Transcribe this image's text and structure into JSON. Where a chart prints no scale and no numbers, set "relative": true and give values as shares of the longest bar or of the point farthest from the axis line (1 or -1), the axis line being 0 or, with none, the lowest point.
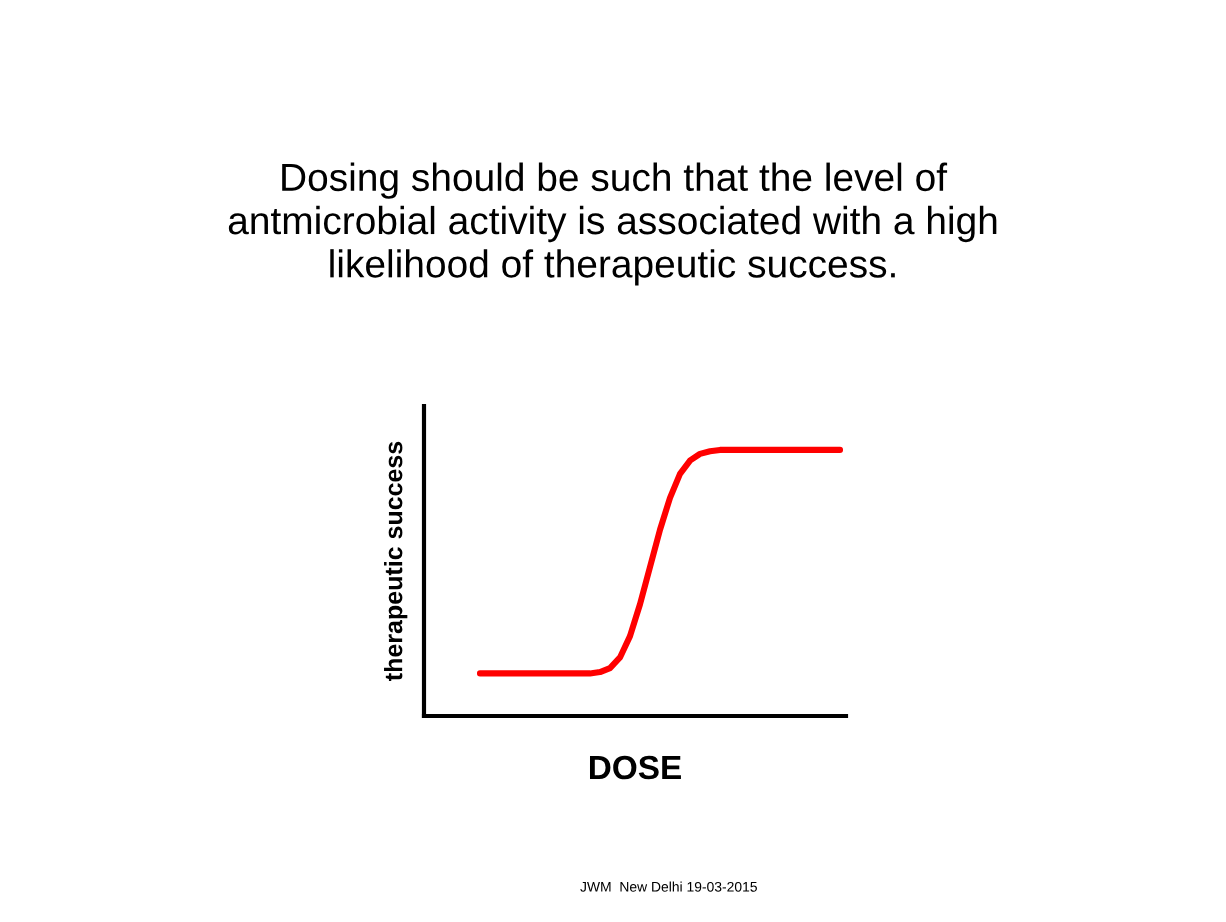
{
  "chart_data": {
    "type": "line",
    "title": "Dosing should be such that the level of\nantmicrobial activity is associated with a high\nlikelihood of therapeutic success.",
    "xlabel": "DOSE",
    "ylabel": "therapeutic success",
    "relative": true,
    "marker": "none",
    "line_style": "solid",
    "categories": [
      null,
      null,
      null,
      null,
      null,
      null,
      null,
      null,
      null,
      null,
      null,
      null,
      null,
      null,
      null,
      null,
      null,
      null,
      null,
      null,
      null,
      null,
      null,
      null,
      null,
      null,
      null,
      null,
      null,
      null,
      null,
      null,
      null,
      null,
      null,
      null,
      null
    ],
    "series": [
      {
        "color": "#ff0000",
        "values": [
          0.16,
          0.16,
          0.16,
          0.16,
          0.16,
          0.16,
          0.16,
          0.16,
          0.16,
          0.16,
          0.16,
          0.16,
          0.165,
          0.18,
          0.22,
          0.3,
          0.42,
          0.56,
          0.7,
          0.82,
          0.91,
          0.96,
          0.985,
          0.995,
          1,
          1,
          1,
          1,
          1,
          1,
          1,
          1,
          1,
          1,
          1,
          1,
          1
        ]
      }
    ],
    "annotations": [
      "JWM  New Delhi 19-03-2015"
    ]
  }
}
